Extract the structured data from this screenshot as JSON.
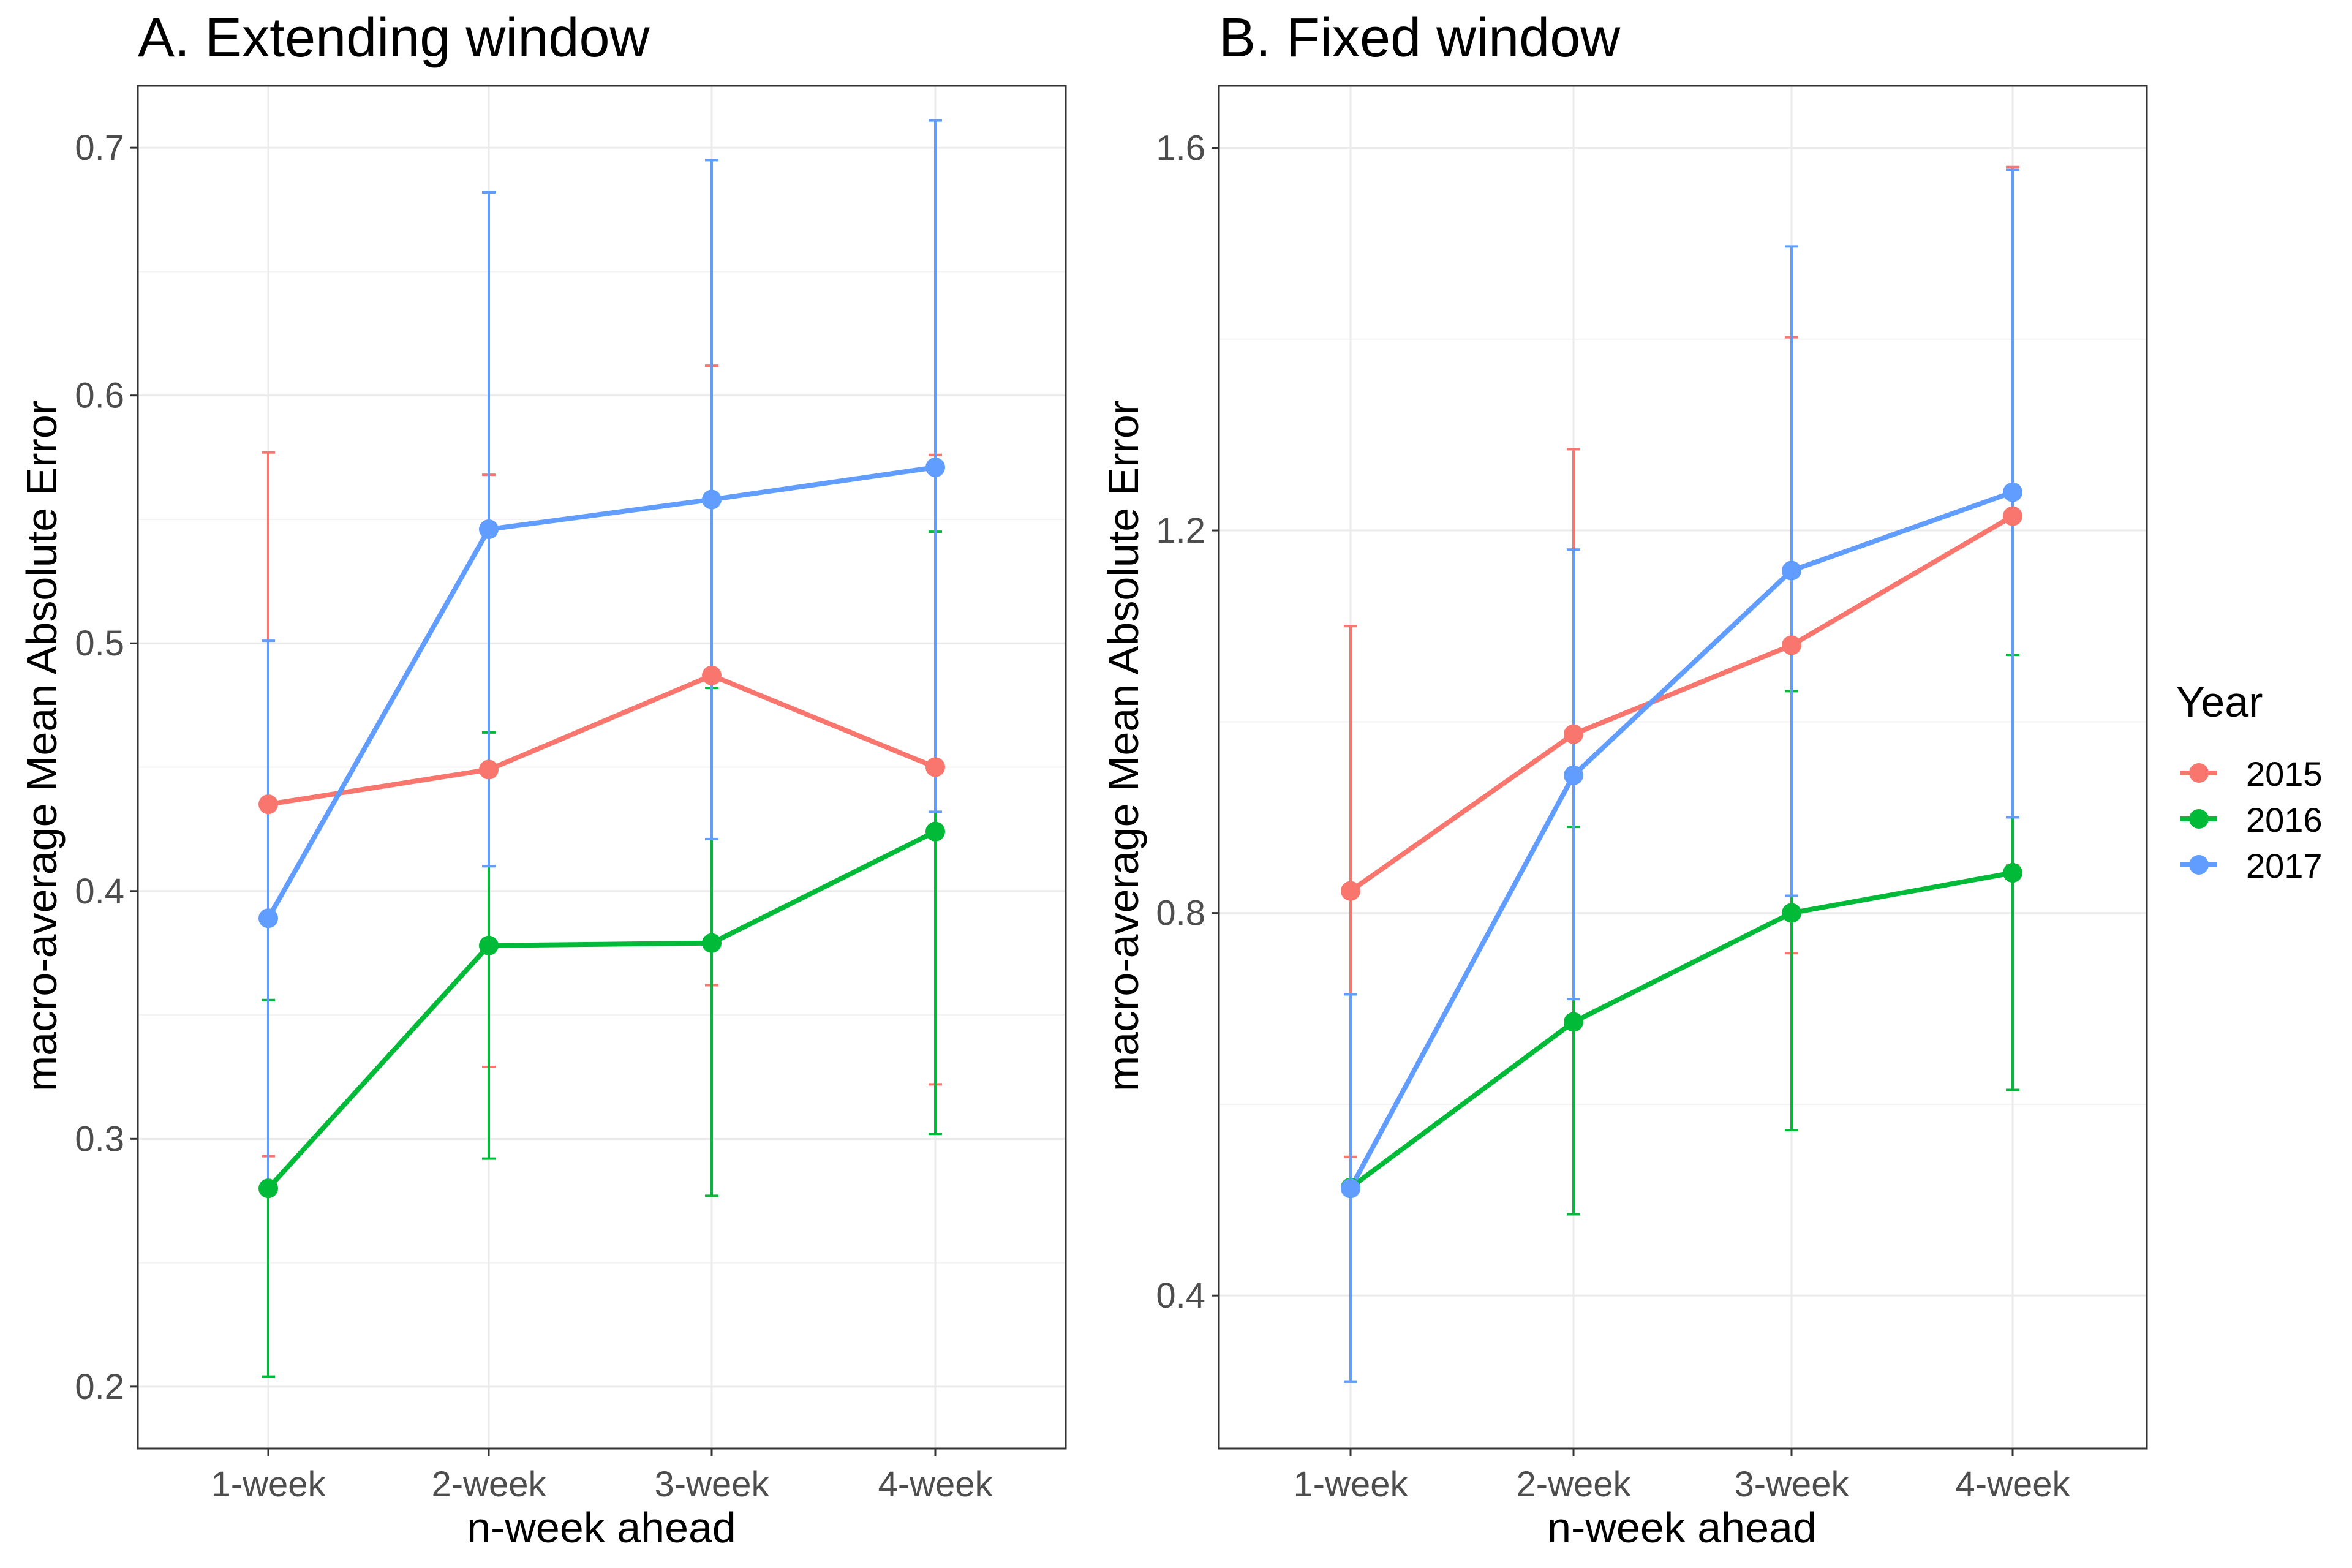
{
  "chart_data": [
    {
      "type": "line",
      "title": "A. Extending window",
      "xlabel": "n-week ahead",
      "ylabel": "macro-average Mean Absolute Error",
      "categories": [
        "1-week",
        "2-week",
        "3-week",
        "4-week"
      ],
      "ylim": [
        0.175,
        0.725
      ],
      "yticks": [
        0.2,
        0.3,
        0.4,
        0.5,
        0.6,
        0.7
      ],
      "ytick_labels": [
        "0.2",
        "0.3",
        "0.4",
        "0.5",
        "0.6",
        "0.7"
      ],
      "grid": true,
      "series": [
        {
          "name": "2015",
          "color": "#F8766D",
          "values": [
            0.435,
            0.449,
            0.487,
            0.45
          ],
          "lower": [
            0.293,
            0.329,
            0.362,
            0.322
          ],
          "upper": [
            0.577,
            0.568,
            0.612,
            0.576
          ]
        },
        {
          "name": "2016",
          "color": "#00BA38",
          "values": [
            0.28,
            0.378,
            0.379,
            0.424
          ],
          "lower": [
            0.204,
            0.292,
            0.277,
            0.302
          ],
          "upper": [
            0.356,
            0.464,
            0.482,
            0.545
          ]
        },
        {
          "name": "2017",
          "color": "#619CFF",
          "values": [
            0.389,
            0.546,
            0.558,
            0.571
          ],
          "lower": [
            0.278,
            0.41,
            0.421,
            0.432
          ],
          "upper": [
            0.501,
            0.682,
            0.695,
            0.711
          ]
        }
      ]
    },
    {
      "type": "line",
      "title": "B. Fixed window",
      "xlabel": "n-week ahead",
      "ylabel": "macro-average Mean Absolute Error",
      "categories": [
        "1-week",
        "2-week",
        "3-week",
        "4-week"
      ],
      "ylim": [
        0.24,
        1.665
      ],
      "yticks": [
        0.4,
        0.8,
        1.2,
        1.6
      ],
      "ytick_labels": [
        "0.4",
        "0.8",
        "1.2",
        "1.6"
      ],
      "grid": true,
      "series": [
        {
          "name": "2015",
          "color": "#F8766D",
          "values": [
            0.823,
            0.987,
            1.08,
            1.215
          ],
          "lower": [
            0.545,
            0.69,
            0.758,
            0.85
          ],
          "upper": [
            1.1,
            1.285,
            1.402,
            1.58
          ]
        },
        {
          "name": "2016",
          "color": "#00BA38",
          "values": [
            0.513,
            0.686,
            0.8,
            0.842
          ],
          "lower": [
            0.31,
            0.485,
            0.573,
            0.615
          ],
          "upper": [
            0.715,
            0.89,
            1.032,
            1.07
          ]
        },
        {
          "name": "2017",
          "color": "#619CFF",
          "values": [
            0.512,
            0.944,
            1.158,
            1.24
          ],
          "lower": [
            0.31,
            0.71,
            0.818,
            0.9
          ],
          "upper": [
            0.715,
            1.18,
            1.497,
            1.577
          ]
        }
      ]
    }
  ],
  "legend": {
    "title": "Year",
    "items": [
      {
        "label": "2015",
        "color": "#F8766D"
      },
      {
        "label": "2016",
        "color": "#00BA38"
      },
      {
        "label": "2017",
        "color": "#619CFF"
      }
    ]
  }
}
